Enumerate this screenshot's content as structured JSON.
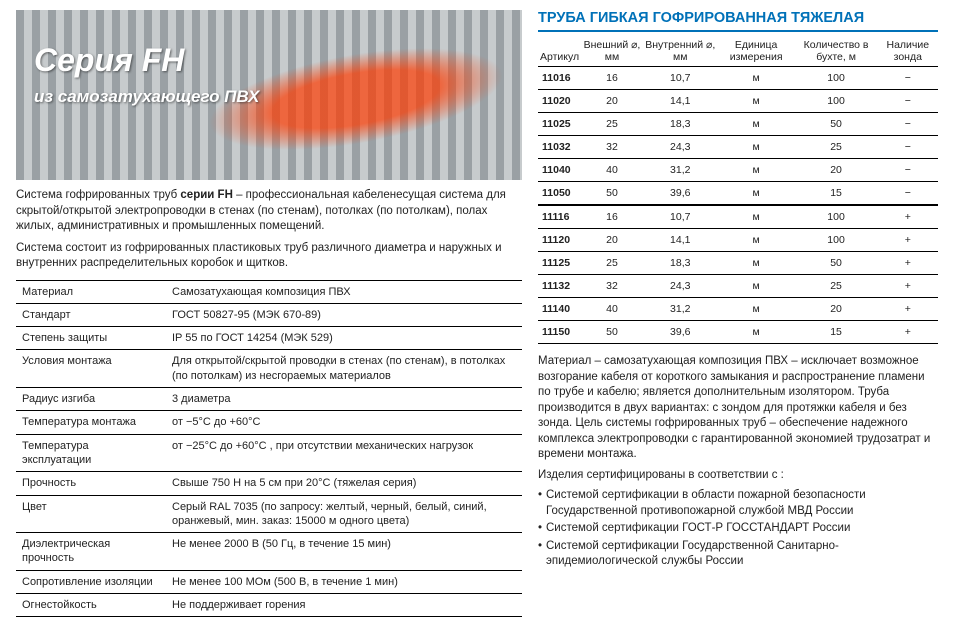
{
  "hero": {
    "title": "Серия FH",
    "subtitle": "из самозатухающего ПВХ"
  },
  "intro": {
    "p1_a": "Система гофрированных труб ",
    "p1_b": "серии FH",
    "p1_c": " – профессиональная кабеленесущая система для скрытой/открытой электропроводки в стенах (по стенам), потолках (по потолкам), полах жилых, административных и промышленных помещений.",
    "p2": "Система состоит из гофрированных пластиковых труб различного диаметра и наружных и внутренних распределительных коробок и щитков."
  },
  "specs": [
    {
      "k": "Материал",
      "v": "Самозатухающая композиция ПВХ"
    },
    {
      "k": "Стандарт",
      "v": "ГОСТ 50827-95 (МЭК 670-89)"
    },
    {
      "k": "Степень защиты",
      "v": "IP 55 по ГОСТ 14254 (МЭК 529)"
    },
    {
      "k": "Условия монтажа",
      "v": "Для открытой/скрытой проводки в стенах (по стенам), в потолках (по потолкам) из несгораемых материалов"
    },
    {
      "k": "Радиус изгиба",
      "v": "3 диаметра"
    },
    {
      "k": "Температура монтажа",
      "v": "от −5°С до +60°С"
    },
    {
      "k": "Температура эксплуатации",
      "v": "от −25°С до +60°С , при отсутствии механических нагрузок"
    },
    {
      "k": "Прочность",
      "v": "Свыше 750 Н на 5 см при 20°С (тяжелая серия)"
    },
    {
      "k": "Цвет",
      "v": "Серый RAL 7035 (по запросу: желтый, черный, белый, синий, оранжевый, мин. заказ: 15000 м одного цвета)"
    },
    {
      "k": "Диэлектрическая прочность",
      "v": "Не менее 2000 В (50 Гц, в течение 15 мин)"
    },
    {
      "k": "Сопротивление изоляции",
      "v": "Не менее 100 МОм (500 В, в течение 1 мин)"
    },
    {
      "k": "Огнестойкость",
      "v": "Не поддерживает горения"
    }
  ],
  "rtitle": "ТРУБА ГИБКАЯ ГОФРИРОВАННАЯ ТЯЖЕЛАЯ",
  "cols": [
    "Артикул",
    "Внешний ⌀, мм",
    "Внутренний ⌀, мм",
    "Единица измерения",
    "Количество в бухте, м",
    "Наличие зонда"
  ],
  "rows1": [
    [
      "11016",
      "16",
      "10,7",
      "м",
      "100",
      "−"
    ],
    [
      "11020",
      "20",
      "14,1",
      "м",
      "100",
      "−"
    ],
    [
      "11025",
      "25",
      "18,3",
      "м",
      "50",
      "−"
    ],
    [
      "11032",
      "32",
      "24,3",
      "м",
      "25",
      "−"
    ],
    [
      "11040",
      "40",
      "31,2",
      "м",
      "20",
      "−"
    ],
    [
      "11050",
      "50",
      "39,6",
      "м",
      "15",
      "−"
    ]
  ],
  "rows2": [
    [
      "11116",
      "16",
      "10,7",
      "м",
      "100",
      "+"
    ],
    [
      "11120",
      "20",
      "14,1",
      "м",
      "100",
      "+"
    ],
    [
      "11125",
      "25",
      "18,3",
      "м",
      "50",
      "+"
    ],
    [
      "11132",
      "32",
      "24,3",
      "м",
      "25",
      "+"
    ],
    [
      "11140",
      "40",
      "31,2",
      "м",
      "20",
      "+"
    ],
    [
      "11150",
      "50",
      "39,6",
      "м",
      "15",
      "+"
    ]
  ],
  "rdesc": {
    "p1": "Материал – самозатухающая композиция ПВХ – исключает возможное возгорание кабеля от короткого замыкания и распространение пламени по трубе и кабелю; является дополнительным изолятором. Труба производится в двух вариантах: с зондом для протяжки кабеля и без зонда. Цель системы гофрированных труб – обеспечение надежного комплекса электропроводки с гарантированной экономией трудозатрат и времени монтажа.",
    "p2": "Изделия сертифицированы в соответствии с :",
    "li1": "Системой сертификации в области пожарной безопасности Государственной противопожарной службой МВД России",
    "li2": "Системой сертификации ГОСТ-Р ГОССТАНДАРТ России",
    "li3": "Системой сертификации Государственной Санитарно-эпидемиологической службы России"
  }
}
